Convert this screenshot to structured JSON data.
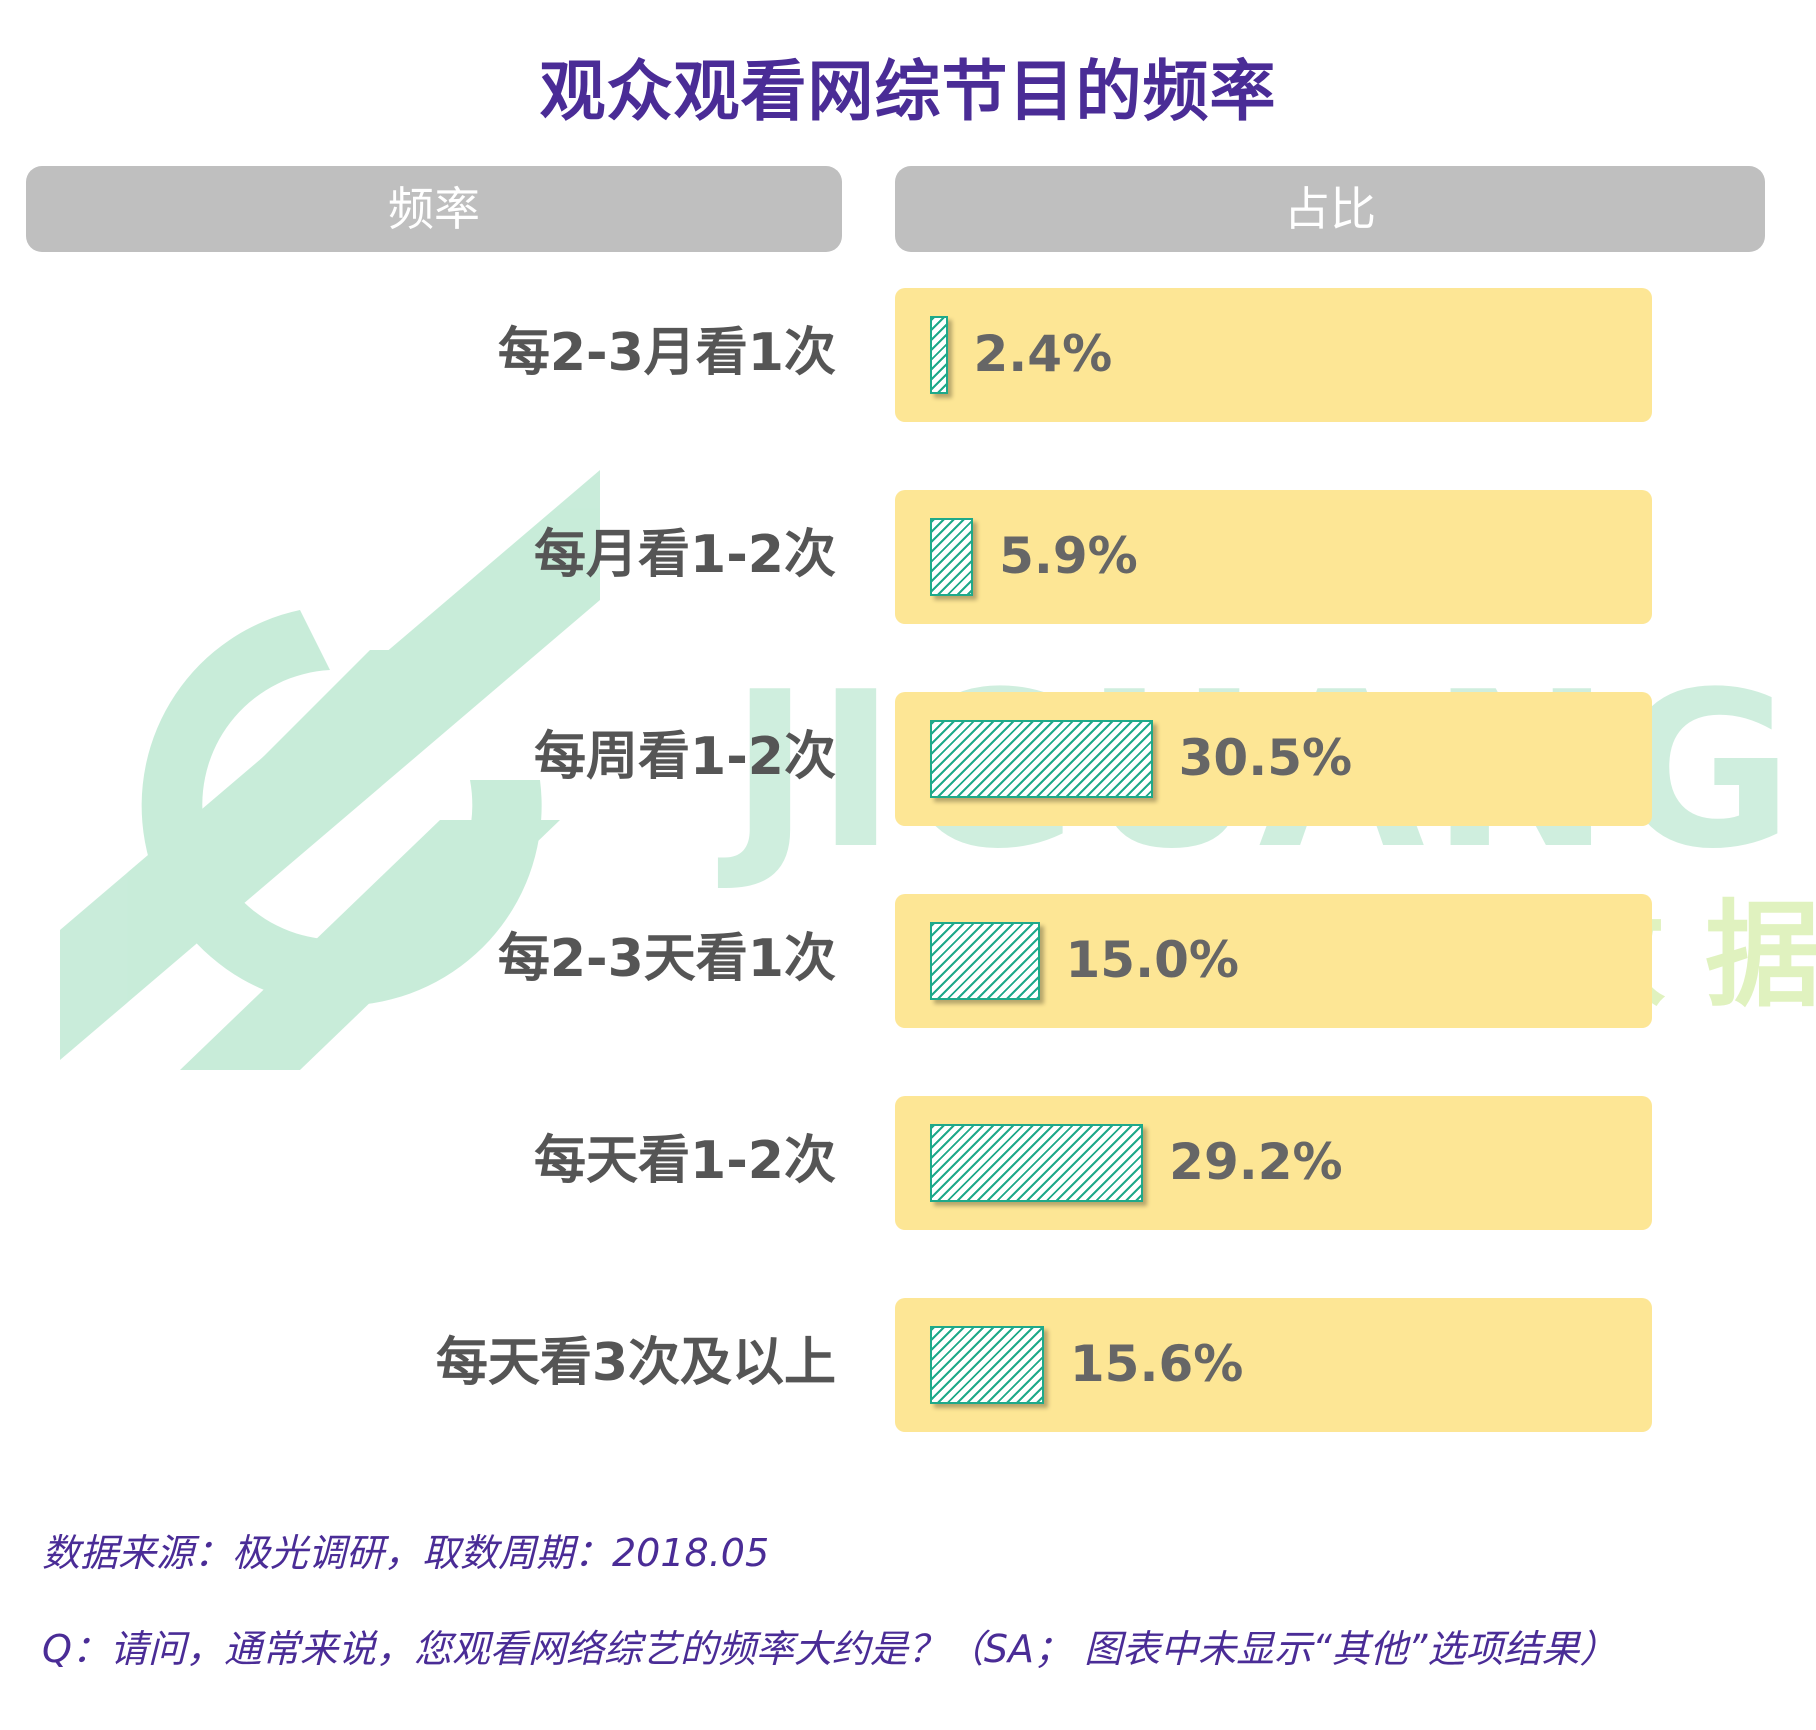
{
  "title": "观众观看网综节目的频率",
  "headers": {
    "left": "频率",
    "right": "占比"
  },
  "watermark": {
    "logo_text": "JIGUANG",
    "logo_sub": "极 光 大 数 据"
  },
  "colors": {
    "title": "#4a2c96",
    "header_bg": "#bfbfbf",
    "row_bg": "#fde695",
    "bar": "#1fa98a",
    "label": "#555555",
    "value": "#666666",
    "watermark": "#bfe9d3"
  },
  "chart_data": {
    "type": "bar",
    "orientation": "horizontal",
    "categories": [
      "每2-3月看1次",
      "每月看1-2次",
      "每周看1-2次",
      "每2-3天看1次",
      "每天看1-2次",
      "每天看3次及以上"
    ],
    "values": [
      2.4,
      5.9,
      30.5,
      15.0,
      29.2,
      15.6
    ],
    "value_labels": [
      "2.4%",
      "5.9%",
      "30.5%",
      "15.0%",
      "29.2%",
      "15.6%"
    ],
    "unit": "%",
    "xlim": [
      0,
      100
    ]
  },
  "notes": {
    "source": "数据来源：极光调研，取数周期：2018.05",
    "question": "Q：请问，通常来说，您观看网络综艺的频率大约是？（SA； 图表中未显示“其他”选项结果）"
  }
}
